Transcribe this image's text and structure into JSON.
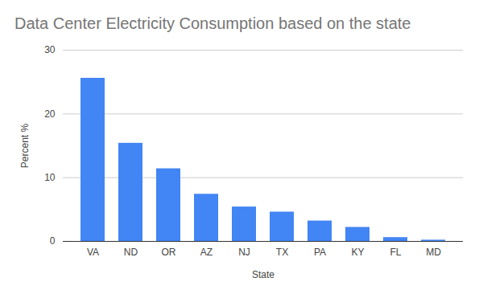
{
  "chart_data": {
    "type": "bar",
    "title": "Data Center Electricity Consumption based on the state",
    "x_label": "State",
    "y_label": "Percent %",
    "categories": [
      "VA",
      "ND",
      "OR",
      "AZ",
      "NJ",
      "TX",
      "PA",
      "KY",
      "FL",
      "MD"
    ],
    "values": [
      25.6,
      15.4,
      11.4,
      7.4,
      5.4,
      4.6,
      3.2,
      2.2,
      0.6,
      0.2
    ],
    "color": "#4285f4",
    "ylim": [
      0,
      30
    ],
    "yticks": [
      0,
      10,
      20,
      30
    ],
    "grid": true
  }
}
